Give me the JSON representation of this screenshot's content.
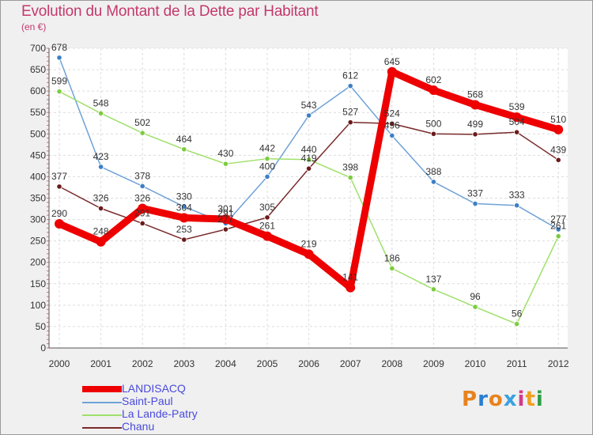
{
  "chart_data": {
    "type": "line",
    "title": "Evolution du Montant de la Dette par Habitant",
    "subtitle": "(en €)",
    "xlabel": "",
    "ylabel": "",
    "categories": [
      "2000",
      "2001",
      "2002",
      "2003",
      "2004",
      "2005",
      "2006",
      "2007",
      "2008",
      "2009",
      "2010",
      "2011",
      "2012"
    ],
    "ylim": [
      0,
      700
    ],
    "yticks": [
      0,
      50,
      100,
      150,
      200,
      250,
      300,
      350,
      400,
      450,
      500,
      550,
      600,
      650,
      700
    ],
    "grid": true,
    "legend_position": "bottom-left",
    "series": [
      {
        "name": "Saint-Paul",
        "color": "#6fa2d8",
        "marker_color": "#3d7fc7",
        "values": [
          678,
          423,
          378,
          330,
          291,
          400,
          543,
          612,
          496,
          388,
          337,
          333,
          277
        ],
        "labels": [
          "678",
          "423",
          "378",
          "330",
          "291",
          "400",
          "543",
          "612",
          "496",
          "388",
          "337",
          "333",
          "277"
        ]
      },
      {
        "name": "La Lande-Patry",
        "color": "#9fe06a",
        "marker_color": "#7ccc3f",
        "values": [
          599,
          548,
          502,
          464,
          430,
          442,
          440,
          398,
          186,
          137,
          96,
          56,
          261
        ],
        "labels": [
          "599",
          "548",
          "502",
          "464",
          "430",
          "442",
          "440",
          "398",
          "186",
          "137",
          "96",
          "56",
          "261"
        ]
      },
      {
        "name": "Chanu",
        "color": "#7a2a2a",
        "marker_color": "#6b1a1a",
        "values": [
          377,
          326,
          291,
          253,
          277,
          305,
          419,
          527,
          524,
          500,
          499,
          504,
          439
        ],
        "labels": [
          "377",
          "326",
          "291",
          "253",
          "277",
          "305",
          "419",
          "527",
          "524",
          "500",
          "499",
          "504",
          "439"
        ]
      },
      {
        "name": "LANDISACQ",
        "color": "#ee0000",
        "marker_color": "#ee0000",
        "values": [
          290,
          248,
          326,
          304,
          301,
          261,
          219,
          141,
          645,
          602,
          568,
          539,
          510
        ],
        "labels": [
          "290",
          "248",
          "326",
          "304",
          "301",
          "261",
          "219",
          "141",
          "645",
          "602",
          "568",
          "539",
          "510"
        ]
      }
    ]
  },
  "legend_order": [
    "LANDISACQ",
    "Saint-Paul",
    "La Lande-Patry",
    "Chanu"
  ],
  "logo": {
    "text": "Proxiti",
    "colors": [
      "#e8821e",
      "#2a7fd0",
      "#e8821e",
      "#3aa0e0",
      "#d23b8a",
      "#f0a020",
      "#2f9e44"
    ]
  }
}
